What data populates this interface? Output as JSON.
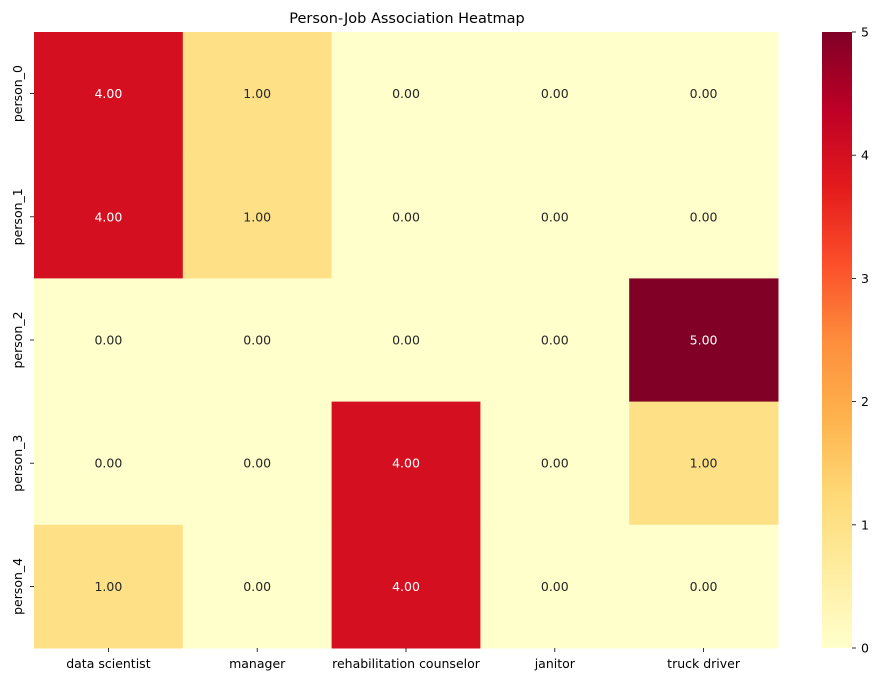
{
  "chart_data": {
    "type": "heatmap",
    "title": "Person-Job Association Heatmap",
    "xlabel": "",
    "ylabel": "",
    "x_categories": [
      "data scientist",
      "manager",
      "rehabilitation counselor",
      "janitor",
      "truck driver"
    ],
    "y_categories": [
      "person_0",
      "person_1",
      "person_2",
      "person_3",
      "person_4"
    ],
    "values": [
      [
        4,
        1,
        0,
        0,
        0
      ],
      [
        4,
        1,
        0,
        0,
        0
      ],
      [
        0,
        0,
        0,
        0,
        5
      ],
      [
        0,
        0,
        4,
        0,
        1
      ],
      [
        1,
        0,
        4,
        0,
        0
      ]
    ],
    "cell_labels": [
      [
        "4.00",
        "1.00",
        "0.00",
        "0.00",
        "0.00"
      ],
      [
        "4.00",
        "1.00",
        "0.00",
        "0.00",
        "0.00"
      ],
      [
        "0.00",
        "0.00",
        "0.00",
        "0.00",
        "5.00"
      ],
      [
        "0.00",
        "0.00",
        "4.00",
        "0.00",
        "1.00"
      ],
      [
        "1.00",
        "0.00",
        "4.00",
        "0.00",
        "0.00"
      ]
    ],
    "colormap": "YlOrRd",
    "vmin": 0,
    "vmax": 5,
    "colorbar_ticks": [
      "0",
      "1",
      "2",
      "3",
      "4",
      "5"
    ],
    "colormap_stops": [
      "#ffffcc",
      "#ffeda0",
      "#fed976",
      "#feb24c",
      "#fd8d3c",
      "#fc4e2a",
      "#e31a1c",
      "#bd0026",
      "#800026"
    ]
  }
}
